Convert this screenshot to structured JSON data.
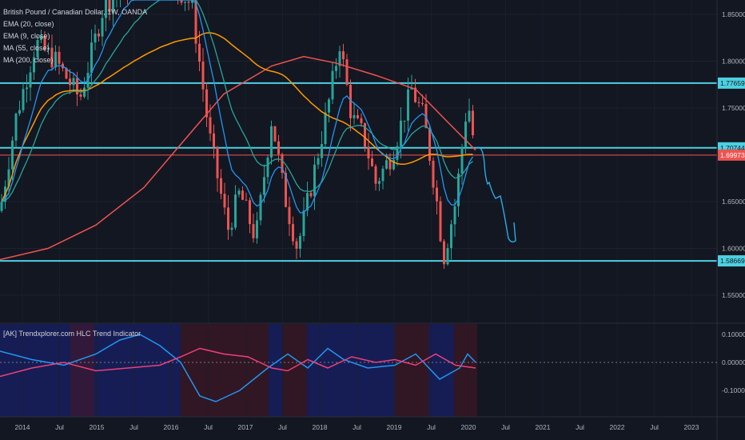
{
  "legend": {
    "symbol": "British Pound / Canadian Dollar, 1W, OANDA",
    "studies": [
      "EMA (20, close)",
      "EMA (9, close)",
      "MA (55, close)",
      "MA (200, close)"
    ]
  },
  "indicator": {
    "label": "[AK] Trendxplorer.com HLC Trend Indicator",
    "ticks": [
      "0.10000",
      "0.00000",
      "-0.10000"
    ]
  },
  "price_axis": {
    "ticks": [
      "1.85000",
      "1.80000",
      "1.75000",
      "1.70000",
      "1.65000",
      "1.60000",
      "1.55000"
    ]
  },
  "time_axis": {
    "labels": [
      "2014",
      "Jul",
      "2015",
      "Jul",
      "2016",
      "Jul",
      "2017",
      "Jul",
      "2018",
      "Jul",
      "2019",
      "Jul",
      "2020",
      "Jul",
      "2021",
      "Jul",
      "2022",
      "Jul",
      "2023"
    ]
  },
  "horizontal_lines": [
    {
      "price": "1.77659",
      "color": "#4dd0e1"
    },
    {
      "price": "1.70744",
      "color": "#4dd0e1"
    },
    {
      "price": "1.58669",
      "color": "#4dd0e1"
    }
  ],
  "current_price": {
    "value": "1.69973",
    "color": "#ef5350"
  },
  "colors": {
    "background": "#131722",
    "up": "#26a69a",
    "down": "#ef5350",
    "ema20": "#26a69a",
    "ema9": "#2196f3",
    "ma55": "#ff9800",
    "ma200": "#ef5350",
    "hline": "#4dd0e1",
    "drawing": "#29b6f6"
  }
}
